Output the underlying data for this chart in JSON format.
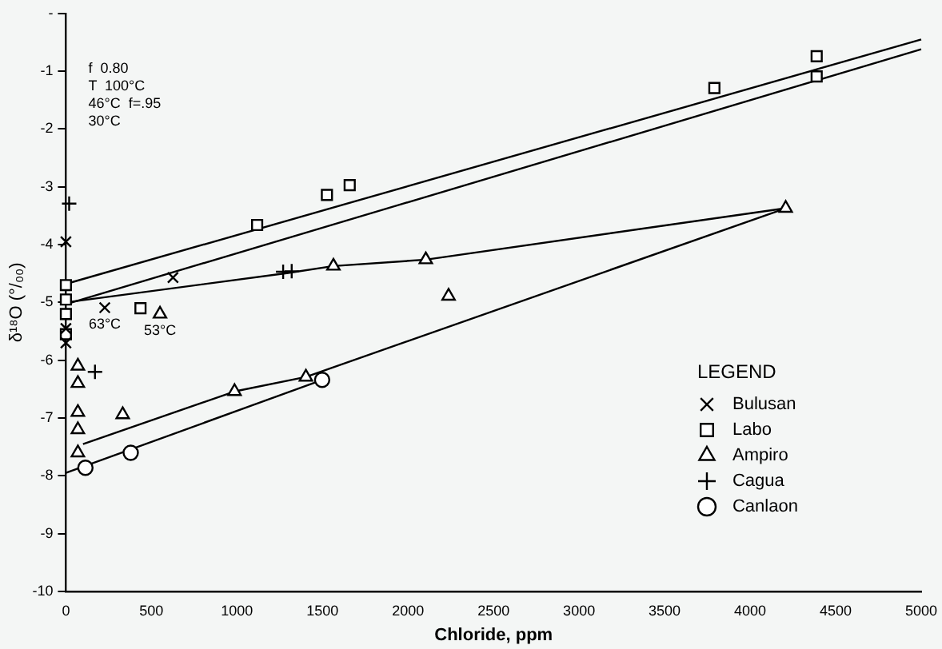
{
  "chart_data": {
    "type": "scatter",
    "xlabel": "Chloride, ppm",
    "ylabel": "δ¹⁸O (°/₀₀)",
    "legend_title": "LEGEND",
    "legend": "bottom right",
    "grid": false,
    "xlim": [
      0,
      5000
    ],
    "xticks": [
      0,
      500,
      1000,
      1500,
      2000,
      2500,
      3000,
      3500,
      4000,
      4500,
      5000
    ],
    "ylim": [
      -10,
      0
    ],
    "yticks": [
      {
        "value": 0,
        "label": "-"
      },
      -1,
      -2,
      -3,
      -4,
      -5,
      -6,
      -7,
      -8,
      -9,
      -10
    ],
    "series": [
      {
        "name": "Bulusan",
        "marker": "x",
        "color": "#000000",
        "x": [
          0,
          227,
          626,
          0,
          0
        ],
        "values": [
          -3.95,
          -5.09,
          -4.57,
          -5.45,
          -5.7
        ]
      },
      {
        "name": "Labo",
        "marker": "square",
        "color": "#000000",
        "x": [
          0,
          0,
          0,
          0,
          436,
          1118,
          1526,
          1659,
          3791,
          4389,
          4389
        ],
        "values": [
          -4.7,
          -4.95,
          -5.2,
          -5.55,
          -5.1,
          -3.66,
          -3.14,
          -2.97,
          -1.29,
          -0.74,
          -1.09
        ]
      },
      {
        "name": "Ampiro",
        "marker": "triangle",
        "color": "#000000",
        "x": [
          70,
          70,
          70,
          70,
          70,
          550,
          332,
          986,
          1403,
          1564,
          2104,
          2237,
          4208
        ],
        "values": [
          -6.1,
          -6.4,
          -6.9,
          -7.2,
          -7.6,
          -5.2,
          -6.94,
          -6.54,
          -6.29,
          -4.37,
          -4.26,
          -4.89,
          -3.37
        ]
      },
      {
        "name": "Cagua",
        "marker": "cross",
        "color": "#000000",
        "x": [
          19,
          170,
          1270,
          1320
        ],
        "values": [
          -3.29,
          -6.2,
          -4.47,
          -4.46
        ]
      },
      {
        "name": "Canlaon",
        "marker": "circle",
        "color": "#000000",
        "x": [
          114,
          379,
          1498
        ],
        "values": [
          -7.86,
          -7.6,
          -6.34
        ]
      },
      {
        "type": "line",
        "marker": "none",
        "color": "#000000",
        "x": [
          0,
          5000
        ],
        "values": [
          -4.68,
          -0.45
        ]
      },
      {
        "type": "line",
        "marker": "none",
        "color": "#000000",
        "x": [
          0,
          5000
        ],
        "values": [
          -5.03,
          -0.62
        ]
      },
      {
        "type": "line",
        "marker": "none",
        "color": "#000000",
        "x": [
          0,
          1300,
          1564,
          2104,
          4208
        ],
        "values": [
          -5.0,
          -4.49,
          -4.37,
          -4.26,
          -3.37
        ]
      },
      {
        "type": "line",
        "marker": "none",
        "color": "#000000",
        "x": [
          100,
          986,
          1403,
          4208
        ],
        "values": [
          -7.45,
          -6.54,
          -6.29,
          -3.37
        ]
      },
      {
        "type": "line",
        "marker": "none",
        "color": "#000000",
        "x": [
          0,
          1498
        ],
        "values": [
          -7.95,
          -6.34
        ]
      }
    ],
    "annotations": [
      "f  0.80",
      "T  100°C",
      "46°C  f=.95",
      "30°C",
      {
        "text": "63°C",
        "x": 227,
        "y": -5.09
      },
      {
        "text": "53°C",
        "x": 550,
        "y": -5.2
      }
    ]
  }
}
